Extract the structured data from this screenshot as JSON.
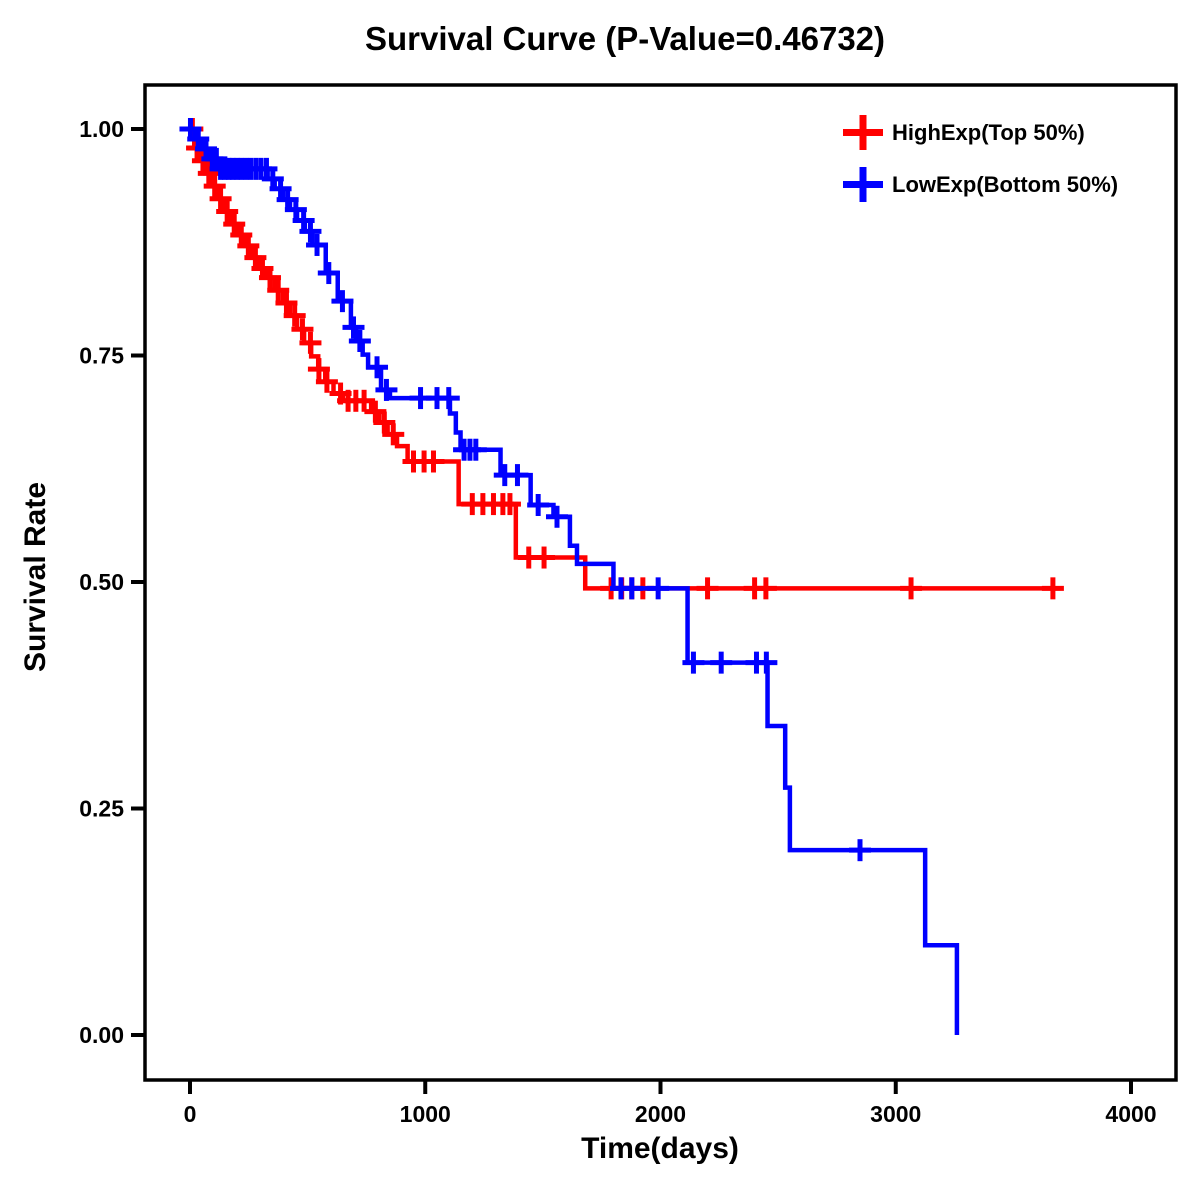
{
  "title": "Survival Curve (P-Value=0.46732)",
  "axes": {
    "x": {
      "label": "Time(days)",
      "tick_labels": [
        "0",
        "1000",
        "2000",
        "3000",
        "4000"
      ],
      "tick_values": [
        0,
        1000,
        2000,
        3000,
        4000
      ],
      "range": [
        0,
        4000
      ]
    },
    "y": {
      "label": "Survival Rate",
      "tick_labels": [
        "1.00",
        "0.75",
        "0.50",
        "0.25",
        "0.00"
      ],
      "tick_values": [
        1.0,
        0.75,
        0.5,
        0.25,
        0.0
      ],
      "range": [
        0.0,
        1.0
      ]
    }
  },
  "legend": {
    "items": [
      {
        "label": "HighExp(Top 50%)",
        "color": "#ff0000",
        "marker": "plus-icon"
      },
      {
        "label": "LowExp(Bottom 50%)",
        "color": "#0000ff",
        "marker": "plus-icon"
      }
    ]
  },
  "colors": {
    "axis": "#000000",
    "background": "#ffffff",
    "high_exp": "#ff0000",
    "low_exp": "#0000ff"
  },
  "chart_data": {
    "type": "line",
    "subtype": "kaplan-meier-step",
    "title": "Survival Curve (P-Value=0.46732)",
    "p_value": 0.46732,
    "xlabel": "Time(days)",
    "ylabel": "Survival Rate",
    "xlim": [
      0,
      4000
    ],
    "ylim": [
      0.0,
      1.0
    ],
    "grid": false,
    "legend_position": "top-right-inside",
    "series": [
      {
        "name": "HighExp(Top 50%)",
        "color": "#ff0000",
        "steps": [
          [
            0,
            1.0
          ],
          [
            18,
            0.979
          ],
          [
            40,
            0.965
          ],
          [
            65,
            0.951
          ],
          [
            90,
            0.937
          ],
          [
            115,
            0.923
          ],
          [
            145,
            0.909
          ],
          [
            175,
            0.895
          ],
          [
            205,
            0.883
          ],
          [
            235,
            0.871
          ],
          [
            265,
            0.858
          ],
          [
            295,
            0.846
          ],
          [
            325,
            0.836
          ],
          [
            360,
            0.822
          ],
          [
            395,
            0.808
          ],
          [
            425,
            0.794
          ],
          [
            455,
            0.779
          ],
          [
            485,
            0.764
          ],
          [
            515,
            0.749
          ],
          [
            545,
            0.735
          ],
          [
            575,
            0.721
          ],
          [
            610,
            0.708
          ],
          [
            650,
            0.7
          ],
          [
            770,
            0.688
          ],
          [
            805,
            0.676
          ],
          [
            840,
            0.663
          ],
          [
            880,
            0.65
          ],
          [
            925,
            0.633
          ],
          [
            1142,
            0.586
          ],
          [
            1385,
            0.527
          ],
          [
            1680,
            0.493
          ],
          [
            3700,
            0.493
          ]
        ],
        "censor_times": [
          10,
          30,
          55,
          80,
          105,
          130,
          158,
          188,
          218,
          248,
          278,
          308,
          340,
          375,
          410,
          445,
          478,
          512,
          548,
          582,
          640,
          672,
          705,
          740,
          788,
          826,
          864,
          950,
          995,
          1035,
          1200,
          1245,
          1290,
          1330,
          1360,
          1440,
          1505,
          1790,
          1835,
          1878,
          1925,
          2200,
          2400,
          2448,
          3065,
          3668
        ]
      },
      {
        "name": "LowExp(Bottom 50%)",
        "color": "#0000ff",
        "steps": [
          [
            0,
            1.0
          ],
          [
            22,
            0.989
          ],
          [
            48,
            0.978
          ],
          [
            80,
            0.967
          ],
          [
            115,
            0.956
          ],
          [
            330,
            0.945
          ],
          [
            360,
            0.934
          ],
          [
            395,
            0.922
          ],
          [
            425,
            0.911
          ],
          [
            455,
            0.899
          ],
          [
            488,
            0.887
          ],
          [
            520,
            0.872
          ],
          [
            577,
            0.841
          ],
          [
            628,
            0.81
          ],
          [
            684,
            0.781
          ],
          [
            706,
            0.766
          ],
          [
            734,
            0.751
          ],
          [
            757,
            0.737
          ],
          [
            812,
            0.712
          ],
          [
            850,
            0.703
          ],
          [
            1105,
            0.686
          ],
          [
            1130,
            0.665
          ],
          [
            1150,
            0.646
          ],
          [
            1320,
            0.618
          ],
          [
            1448,
            0.585
          ],
          [
            1545,
            0.572
          ],
          [
            1615,
            0.54
          ],
          [
            1645,
            0.52
          ],
          [
            1800,
            0.493
          ],
          [
            2115,
            0.411
          ],
          [
            2455,
            0.341
          ],
          [
            2530,
            0.273
          ],
          [
            2550,
            0.204
          ],
          [
            3125,
            0.099
          ],
          [
            3260,
            0.0
          ]
        ],
        "censor_times": [
          2,
          35,
          68,
          95,
          112,
          130,
          148,
          165,
          182,
          200,
          218,
          238,
          258,
          280,
          302,
          325,
          352,
          385,
          415,
          450,
          483,
          512,
          540,
          590,
          648,
          695,
          722,
          795,
          835,
          980,
          1050,
          1100,
          1165,
          1190,
          1215,
          1338,
          1392,
          1480,
          1560,
          1832,
          1878,
          1990,
          2140,
          2258,
          2408,
          2450,
          2848
        ]
      }
    ]
  }
}
